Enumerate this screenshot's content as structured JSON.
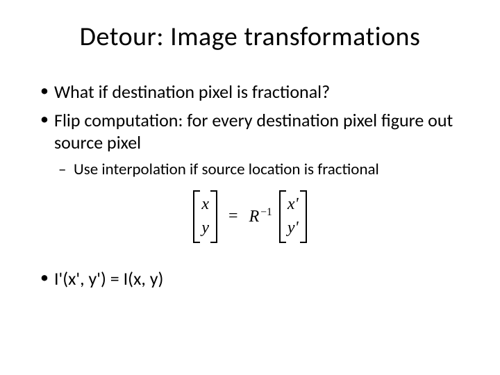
{
  "title": "Detour: Image transformations",
  "bullets": {
    "b1": "What if destination pixel is fractional?",
    "b2": "Flip computation: for every destination pixel figure out source pixel",
    "sub1": "Use interpolation if source location is fractional",
    "b3": "I'(x', y') = I(x, y)"
  },
  "equation": {
    "left_top": "x",
    "left_bottom": "y",
    "operator": "=",
    "r_symbol": "R",
    "r_exponent": "−1",
    "right_top": "x'",
    "right_bottom": "y'"
  },
  "styling": {
    "background_color": "#ffffff",
    "text_color": "#000000",
    "title_fontsize": 38,
    "bullet_fontsize": 26,
    "sub_bullet_fontsize": 23,
    "equation_fontsize": 24,
    "font_family_body": "Calibri",
    "font_family_math": "Times New Roman"
  }
}
